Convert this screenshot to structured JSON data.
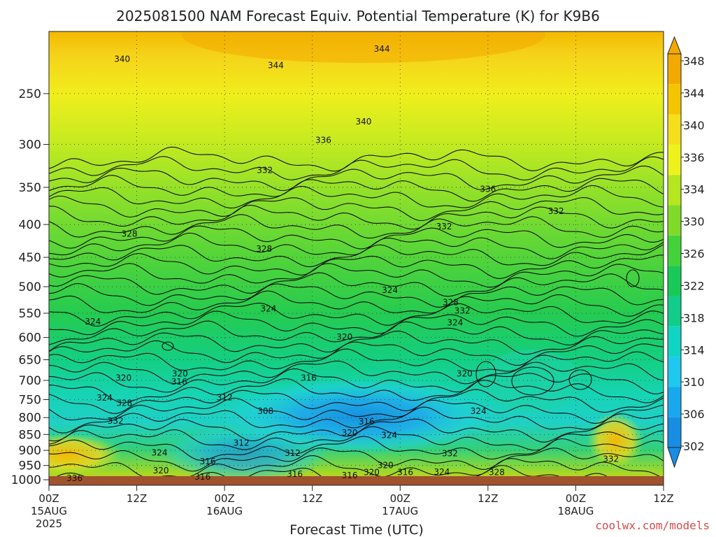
{
  "chart_data": {
    "type": "heatmap",
    "title": "2025081500 NAM Forecast Equiv. Potential Temperature (K) for K9B6",
    "xlabel": "Forecast Time (UTC)",
    "ylabel": "",
    "y_ticks": [
      "250",
      "300",
      "350",
      "400",
      "450",
      "500",
      "550",
      "600",
      "650",
      "700",
      "750",
      "800",
      "850",
      "900",
      "950",
      "1000"
    ],
    "y_tick_values": [
      250,
      300,
      350,
      400,
      450,
      500,
      550,
      600,
      650,
      700,
      750,
      800,
      850,
      900,
      950,
      1000
    ],
    "ylim": [
      200,
      1020
    ],
    "y_scale": "log-pressure",
    "x_ticks": [
      {
        "hours": 0,
        "line1": "00Z",
        "line2": "15AUG",
        "line3": "2025"
      },
      {
        "hours": 12,
        "line1": "12Z",
        "line2": "",
        "line3": ""
      },
      {
        "hours": 24,
        "line1": "00Z",
        "line2": "16AUG",
        "line3": ""
      },
      {
        "hours": 36,
        "line1": "12Z",
        "line2": "",
        "line3": ""
      },
      {
        "hours": 48,
        "line1": "00Z",
        "line2": "17AUG",
        "line3": ""
      },
      {
        "hours": 60,
        "line1": "12Z",
        "line2": "",
        "line3": ""
      },
      {
        "hours": 72,
        "line1": "00Z",
        "line2": "18AUG",
        "line3": ""
      },
      {
        "hours": 84,
        "line1": "12Z",
        "line2": "",
        "line3": ""
      }
    ],
    "xlim_hours": [
      0,
      84
    ],
    "colorbar": {
      "labels": [
        "348",
        "344",
        "340",
        "336",
        "334",
        "330",
        "326",
        "322",
        "318",
        "314",
        "310",
        "306",
        "302"
      ],
      "colors": [
        "#f2a900",
        "#f5c400",
        "#f5de1a",
        "#eef21c",
        "#b5e61e",
        "#7fdb28",
        "#44d23a",
        "#19c957",
        "#10cd8a",
        "#10d5c2",
        "#1ec8ee",
        "#17a8ee",
        "#178de4"
      ],
      "extend_colors": {
        "top": "#f2a900",
        "bottom": "#178de4"
      }
    },
    "contour_labels": [
      {
        "text": "340",
        "h": 10.0,
        "p": 222
      },
      {
        "text": "344",
        "h": 31.0,
        "p": 227
      },
      {
        "text": "344",
        "h": 45.5,
        "p": 214
      },
      {
        "text": "340",
        "h": 43.0,
        "p": 278
      },
      {
        "text": "336",
        "h": 37.5,
        "p": 297
      },
      {
        "text": "332",
        "h": 29.5,
        "p": 331
      },
      {
        "text": "336",
        "h": 60.0,
        "p": 354
      },
      {
        "text": "332",
        "h": 69.3,
        "p": 383
      },
      {
        "text": "332",
        "h": 54.0,
        "p": 405
      },
      {
        "text": "328",
        "h": 11.0,
        "p": 416
      },
      {
        "text": "328",
        "h": 29.4,
        "p": 439
      },
      {
        "text": "324",
        "h": 30.0,
        "p": 544
      },
      {
        "text": "324",
        "h": 46.6,
        "p": 509
      },
      {
        "text": "328",
        "h": 54.9,
        "p": 532
      },
      {
        "text": "332",
        "h": 56.5,
        "p": 548
      },
      {
        "text": "324",
        "h": 55.5,
        "p": 572
      },
      {
        "text": "324",
        "h": 6.0,
        "p": 570
      },
      {
        "text": "320",
        "h": 40.4,
        "p": 602
      },
      {
        "text": "320",
        "h": 17.9,
        "p": 687
      },
      {
        "text": "320",
        "h": 10.2,
        "p": 697
      },
      {
        "text": "316",
        "h": 17.8,
        "p": 707
      },
      {
        "text": "316",
        "h": 35.5,
        "p": 697
      },
      {
        "text": "320",
        "h": 56.8,
        "p": 687
      },
      {
        "text": "312",
        "h": 24.0,
        "p": 748
      },
      {
        "text": "324",
        "h": 7.6,
        "p": 749
      },
      {
        "text": "328",
        "h": 10.3,
        "p": 763
      },
      {
        "text": "308",
        "h": 29.6,
        "p": 786
      },
      {
        "text": "332",
        "h": 9.1,
        "p": 814
      },
      {
        "text": "320",
        "h": 41.1,
        "p": 849
      },
      {
        "text": "324",
        "h": 46.5,
        "p": 857
      },
      {
        "text": "324",
        "h": 58.7,
        "p": 786
      },
      {
        "text": "316",
        "h": 43.4,
        "p": 816
      },
      {
        "text": "312",
        "h": 26.3,
        "p": 881
      },
      {
        "text": "312",
        "h": 33.3,
        "p": 913
      },
      {
        "text": "324",
        "h": 15.1,
        "p": 912
      },
      {
        "text": "332",
        "h": 54.8,
        "p": 915
      },
      {
        "text": "316",
        "h": 21.7,
        "p": 941
      },
      {
        "text": "320",
        "h": 46.0,
        "p": 954
      },
      {
        "text": "332",
        "h": 76.8,
        "p": 933
      },
      {
        "text": "320",
        "h": 15.3,
        "p": 973
      },
      {
        "text": "320",
        "h": 44.1,
        "p": 979
      },
      {
        "text": "316",
        "h": 33.6,
        "p": 985
      },
      {
        "text": "316",
        "h": 41.1,
        "p": 990
      },
      {
        "text": "316",
        "h": 48.7,
        "p": 978
      },
      {
        "text": "324",
        "h": 53.7,
        "p": 977
      },
      {
        "text": "328",
        "h": 61.2,
        "p": 979
      },
      {
        "text": "316",
        "h": 21.0,
        "p": 995
      },
      {
        "text": "336",
        "h": 3.5,
        "p": 1000
      }
    ]
  },
  "credit": "coolwx.com/models"
}
